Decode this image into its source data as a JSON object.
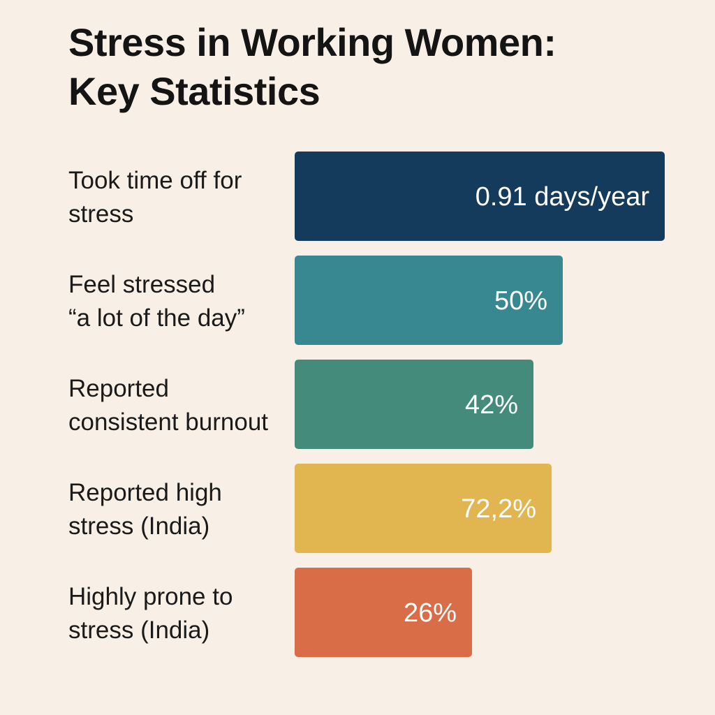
{
  "title": {
    "line1": "Stress in Working Women:",
    "line2": "Key Statistics"
  },
  "chart_data": {
    "type": "bar",
    "orientation": "horizontal",
    "title": "Stress in Working Women: Key Statistics",
    "xlabel": "",
    "ylabel": "",
    "grid": false,
    "legend": "none",
    "categories": [
      [
        "Took time off for",
        "stress"
      ],
      [
        "Feel stressed",
        "“a lot of the day”"
      ],
      [
        "Reported",
        "consistent burnout"
      ],
      [
        "Reported high",
        "stress (India)"
      ],
      [
        "Highly prone to",
        "stress (India)"
      ]
    ],
    "value_labels": [
      "0.91 days/year",
      "50%",
      "42%",
      "72,2%",
      "26%"
    ],
    "values": [
      0.91,
      50,
      42,
      72.2,
      26
    ],
    "colors": [
      "#143a5c",
      "#378891",
      "#448b7b",
      "#e1b54f",
      "#d86d48"
    ]
  }
}
